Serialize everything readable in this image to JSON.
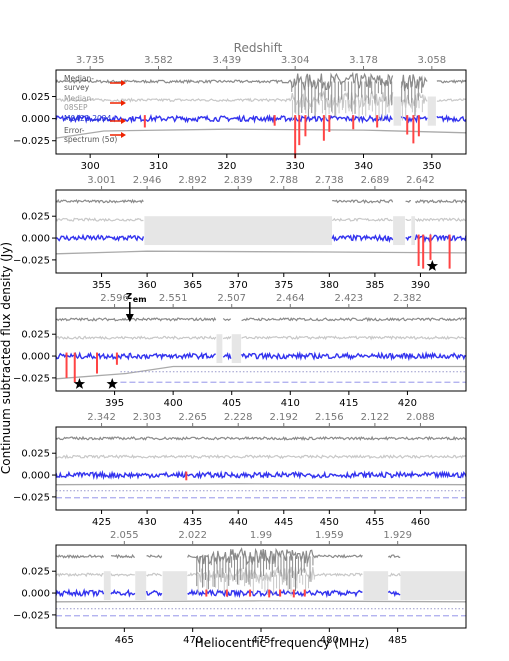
{
  "figure": {
    "top_label": "Redshift",
    "ylabel": "Continuum subtracted flux density (Jy)",
    "xlabel": "Heliocentric frequency (MHz)",
    "zem_label": "z",
    "zem_sub": "em",
    "legend": [
      {
        "lines": [
          "Median-",
          "survey"
        ],
        "color": "#555555"
      },
      {
        "lines": [
          "Median-",
          "08SEP"
        ],
        "color": "#9a9a9a"
      },
      {
        "lines": [
          "M0422-2034"
        ],
        "color": "#2233cc"
      },
      {
        "lines": [
          "Error-",
          "spectrum (5σ)"
        ],
        "color": "#555555"
      }
    ],
    "colors": {
      "survey": "#8a8a8a",
      "sep": "#c8c8c8",
      "target": "#3333ee",
      "rfi": "#ff4444",
      "error": "#aaaaaa",
      "dotted": "#9999cc",
      "dashed": "#aaaaee",
      "gap": "#e6e6e6",
      "arrow": "#ee2200",
      "axis": "#000000",
      "toptick": "#777777"
    }
  },
  "chart_data": [
    {
      "type": "line",
      "xlim": [
        295,
        355
      ],
      "ylim": [
        -0.04,
        0.055
      ],
      "xticks": [
        300,
        310,
        320,
        330,
        340,
        350
      ],
      "yticks": [
        0.025,
        0.0,
        -0.025
      ],
      "ytick_labels": [
        "0.025",
        "0.000",
        "−0.025"
      ],
      "redshift_ticks": [
        {
          "z": "3.735",
          "f": 300.0
        },
        {
          "z": "3.582",
          "f": 310.0
        },
        {
          "z": "3.439",
          "f": 320.0
        },
        {
          "z": "3.304",
          "f": 330.0
        },
        {
          "z": "3.178",
          "f": 340.0
        },
        {
          "z": "3.058",
          "f": 350.0
        }
      ],
      "survey_level": 0.042,
      "sep_level": 0.021,
      "target_level": 0.0,
      "error_curve": [
        [
          295,
          -0.022
        ],
        [
          302,
          -0.014
        ],
        [
          320,
          -0.012
        ],
        [
          340,
          -0.013
        ],
        [
          355,
          -0.016
        ]
      ],
      "gaps": [
        [
          344.4,
          345.5
        ],
        [
          349.4,
          350.6
        ]
      ],
      "features": [
        {
          "f": 330.0,
          "depth": -0.045,
          "kind": "rfi"
        },
        {
          "f": 330.6,
          "depth": -0.03,
          "kind": "rfi"
        },
        {
          "f": 331.5,
          "depth": -0.02,
          "kind": "rfi"
        },
        {
          "f": 334.2,
          "depth": -0.025,
          "kind": "rfi"
        },
        {
          "f": 335.0,
          "depth": -0.015,
          "kind": "rfi"
        },
        {
          "f": 338.5,
          "depth": -0.012,
          "kind": "rfi"
        },
        {
          "f": 342.0,
          "depth": -0.01,
          "kind": "rfi"
        },
        {
          "f": 346.4,
          "depth": -0.018,
          "kind": "rfi"
        },
        {
          "f": 347.3,
          "depth": -0.028,
          "kind": "rfi"
        },
        {
          "f": 348.1,
          "depth": -0.02,
          "kind": "rfi"
        },
        {
          "f": 308.0,
          "depth": -0.01,
          "kind": "rfi"
        },
        {
          "f": 327.0,
          "depth": -0.008,
          "kind": "rfi"
        }
      ],
      "noise_band": [
        [
          329.5,
          349.0
        ]
      ],
      "stars": [],
      "dashed_limits": false
    },
    {
      "type": "line",
      "xlim": [
        350,
        395
      ],
      "ylim": [
        -0.04,
        0.055
      ],
      "xticks": [
        355,
        360,
        365,
        370,
        375,
        380,
        385,
        390
      ],
      "yticks": [
        0.025,
        0.0,
        -0.025
      ],
      "ytick_labels": [
        "0.025",
        "0.000",
        "−0.025"
      ],
      "redshift_ticks": [
        {
          "z": "3.001",
          "f": 355.0
        },
        {
          "z": "2.946",
          "f": 360.0
        },
        {
          "z": "2.892",
          "f": 365.0
        },
        {
          "z": "2.839",
          "f": 370.0
        },
        {
          "z": "2.788",
          "f": 375.0
        },
        {
          "z": "2.738",
          "f": 380.0
        },
        {
          "z": "2.689",
          "f": 385.0
        },
        {
          "z": "2.642",
          "f": 390.0
        }
      ],
      "survey_level": 0.042,
      "sep_level": 0.021,
      "target_level": 0.0,
      "error_curve": [
        [
          350,
          -0.018
        ],
        [
          360,
          -0.015
        ],
        [
          380,
          -0.016
        ],
        [
          395,
          -0.017
        ]
      ],
      "gaps": [
        [
          359.7,
          380.3
        ],
        [
          387.0,
          388.3
        ],
        [
          389.0,
          389.4
        ]
      ],
      "features": [
        {
          "f": 389.8,
          "depth": -0.032,
          "kind": "rfi"
        },
        {
          "f": 390.3,
          "depth": -0.035,
          "kind": "rfi"
        },
        {
          "f": 391.1,
          "depth": -0.025,
          "kind": "rfi"
        },
        {
          "f": 393.2,
          "depth": -0.035,
          "kind": "rfi"
        }
      ],
      "noise_band": [],
      "stars": [
        {
          "f": 391.3,
          "y": -0.032
        }
      ],
      "dashed_limits": false
    },
    {
      "type": "line",
      "xlim": [
        390,
        425
      ],
      "ylim": [
        -0.04,
        0.055
      ],
      "xticks": [
        395,
        400,
        405,
        410,
        415,
        420
      ],
      "yticks": [
        0.025,
        0.0,
        -0.025
      ],
      "ytick_labels": [
        "0.025",
        "0.000",
        "−0.025"
      ],
      "redshift_ticks": [
        {
          "z": "2.596",
          "f": 395.0
        },
        {
          "z": "2.551",
          "f": 400.0
        },
        {
          "z": "2.507",
          "f": 405.0
        },
        {
          "z": "2.464",
          "f": 410.0
        },
        {
          "z": "2.423",
          "f": 415.0
        },
        {
          "z": "2.382",
          "f": 420.0
        }
      ],
      "survey_level": 0.042,
      "sep_level": 0.021,
      "target_level": 0.0,
      "error_curve": [
        [
          390,
          -0.026
        ],
        [
          396,
          -0.02
        ],
        [
          400,
          -0.012
        ],
        [
          425,
          -0.012
        ]
      ],
      "gaps": [
        [
          403.7,
          404.2
        ],
        [
          405.0,
          405.8
        ]
      ],
      "features": [
        {
          "f": 390.9,
          "depth": -0.025,
          "kind": "rfi"
        },
        {
          "f": 391.6,
          "depth": -0.03,
          "kind": "rfi"
        },
        {
          "f": 393.5,
          "depth": -0.02,
          "kind": "rfi"
        },
        {
          "f": 395.2,
          "depth": -0.01,
          "kind": "rfi"
        }
      ],
      "noise_band": [],
      "stars": [
        {
          "f": 392.0,
          "y": -0.032
        },
        {
          "f": 394.8,
          "y": -0.032
        }
      ],
      "zem_f": 396.3,
      "dashed_limits": true,
      "dotted_level": -0.018,
      "dashed_level": -0.03,
      "limit_start": 395.5
    },
    {
      "type": "line",
      "xlim": [
        420,
        465
      ],
      "ylim": [
        -0.04,
        0.055
      ],
      "xticks": [
        425,
        430,
        435,
        440,
        445,
        450,
        455,
        460
      ],
      "yticks": [
        0.025,
        0.0,
        -0.025
      ],
      "ytick_labels": [
        "0.025",
        "0.000",
        "−0.025"
      ],
      "redshift_ticks": [
        {
          "z": "2.342",
          "f": 425.0
        },
        {
          "z": "2.303",
          "f": 430.0
        },
        {
          "z": "2.265",
          "f": 435.0
        },
        {
          "z": "2.228",
          "f": 440.0
        },
        {
          "z": "2.192",
          "f": 445.0
        },
        {
          "z": "2.156",
          "f": 450.0
        },
        {
          "z": "2.122",
          "f": 455.0
        },
        {
          "z": "2.088",
          "f": 460.0
        }
      ],
      "survey_level": 0.042,
      "sep_level": 0.021,
      "target_level": 0.0,
      "error_curve": [
        [
          420,
          -0.011
        ],
        [
          440,
          -0.01
        ],
        [
          465,
          -0.011
        ]
      ],
      "gaps": [],
      "features": [
        {
          "f": 434.3,
          "depth": -0.006,
          "kind": "rfi"
        }
      ],
      "noise_band": [],
      "stars": [],
      "dashed_limits": true,
      "dotted_level": -0.018,
      "dashed_level": -0.026,
      "limit_start": 420
    },
    {
      "type": "line",
      "xlim": [
        460,
        490
      ],
      "ylim": [
        -0.04,
        0.055
      ],
      "xticks": [
        465,
        470,
        475,
        480,
        485
      ],
      "yticks": [
        0.025,
        0.0,
        -0.025
      ],
      "ytick_labels": [
        "0.025",
        "0.000",
        "−0.025"
      ],
      "redshift_ticks": [
        {
          "z": "2.055",
          "f": 465.0
        },
        {
          "z": "2.022",
          "f": 470.0
        },
        {
          "z": "1.99",
          "f": 475.0
        },
        {
          "z": "1.959",
          "f": 480.0
        },
        {
          "z": "1.929",
          "f": 485.0
        }
      ],
      "survey_level": 0.042,
      "sep_level": 0.021,
      "target_level": 0.0,
      "error_curve": [
        [
          460,
          -0.01
        ],
        [
          475,
          -0.009
        ],
        [
          490,
          -0.01
        ]
      ],
      "gaps": [
        [
          463.5,
          464.0
        ],
        [
          465.8,
          466.6
        ],
        [
          467.8,
          469.6
        ],
        [
          482.5,
          484.3
        ],
        [
          485.2,
          490.0
        ]
      ],
      "features": [
        {
          "f": 472.5,
          "depth": -0.004,
          "kind": "rfi"
        },
        {
          "f": 474.2,
          "depth": -0.004,
          "kind": "rfi"
        },
        {
          "f": 475.6,
          "depth": -0.005,
          "kind": "rfi"
        },
        {
          "f": 476.4,
          "depth": -0.004,
          "kind": "rfi"
        },
        {
          "f": 477.4,
          "depth": -0.005,
          "kind": "rfi"
        },
        {
          "f": 478.2,
          "depth": -0.004,
          "kind": "rfi"
        },
        {
          "f": 471.0,
          "depth": -0.004,
          "kind": "rfi"
        }
      ],
      "noise_band": [
        [
          470.3,
          478.8
        ]
      ],
      "stars": [],
      "dashed_limits": true,
      "dotted_level": -0.018,
      "dashed_level": -0.026,
      "limit_start": 460
    }
  ]
}
